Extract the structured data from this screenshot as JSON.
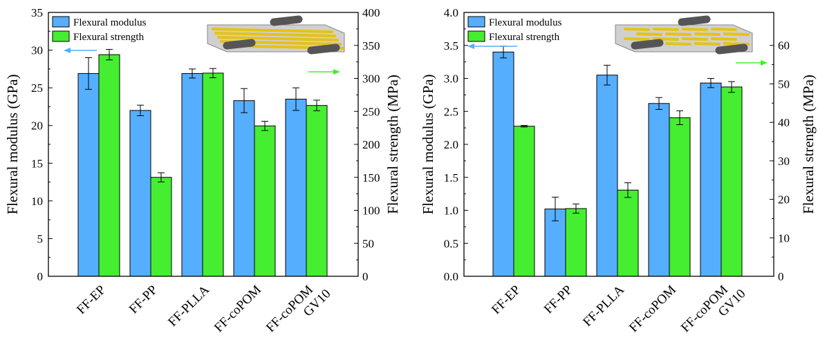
{
  "colors": {
    "modulus": "#56aefe",
    "strength": "#45ee30",
    "axis": "#000000",
    "fiber": "#e6c214",
    "fiber_edge": "#b89400",
    "roller": "#555555",
    "matrix": "#c8c8c8"
  },
  "chart_data": [
    {
      "type": "bar",
      "categories": [
        "FF-EP",
        "FF-PP",
        "FF-PLLA",
        "FF-coPOM",
        "FF-coPOM\nGV10"
      ],
      "ylabel": "Flexural modulus (GPa)",
      "y2label": "Flexural strength (MPa)",
      "ylim": [
        0,
        35
      ],
      "y2lim": [
        0,
        400
      ],
      "yticks": [
        0,
        5,
        10,
        15,
        20,
        25,
        30,
        35
      ],
      "y2ticks": [
        0,
        50,
        100,
        150,
        200,
        250,
        300,
        350,
        400
      ],
      "ytick_labels": [
        "0",
        "5",
        "10",
        "15",
        "20",
        "25",
        "30",
        "35"
      ],
      "y2tick_labels": [
        "0",
        "50",
        "100",
        "150",
        "200",
        "250",
        "300",
        "350",
        "400"
      ],
      "legend_position": "top-left",
      "series": [
        {
          "name": "Flexural modulus",
          "axis": "left",
          "values": [
            26.9,
            22.0,
            26.9,
            23.3,
            23.5
          ],
          "errors": [
            2.1,
            0.7,
            0.6,
            1.6,
            1.5
          ]
        },
        {
          "name": "Flexural strength",
          "axis": "right",
          "values": [
            336,
            150,
            308,
            228,
            259
          ],
          "errors": [
            8,
            7,
            7,
            7,
            8
          ]
        }
      ],
      "arrow_annotations": [
        "modulus-axis-left",
        "strength-axis-right"
      ],
      "inset": "fibers-parallel"
    },
    {
      "type": "bar",
      "categories": [
        "FF-EP",
        "FF-PP",
        "FF-PLLA",
        "FF-coPOM",
        "FF-coPOM\nGV10"
      ],
      "ylabel": "Flexural modulus (GPa)",
      "y2label": "Flexural strength (MPa)",
      "ylim": [
        0,
        4.0
      ],
      "y2lim": [
        0,
        68.57
      ],
      "yticks": [
        0,
        0.5,
        1.0,
        1.5,
        2.0,
        2.5,
        3.0,
        3.5,
        4.0
      ],
      "y2ticks": [
        0,
        10,
        20,
        30,
        40,
        50,
        60
      ],
      "ytick_labels": [
        "0.0",
        "0.5",
        "1.0",
        "1.5",
        "2.0",
        "2.5",
        "3.0",
        "3.5",
        "4.0"
      ],
      "y2tick_labels": [
        "0",
        "10",
        "20",
        "30",
        "40",
        "50",
        "60"
      ],
      "legend_position": "top-left",
      "series": [
        {
          "name": "Flexural modulus",
          "axis": "left",
          "values": [
            3.4,
            1.02,
            3.05,
            2.62,
            2.93
          ],
          "errors": [
            0.09,
            0.18,
            0.15,
            0.09,
            0.07
          ]
        },
        {
          "name": "Flexural strength",
          "axis": "right",
          "values": [
            39.0,
            17.6,
            22.4,
            41.2,
            49.2
          ],
          "errors": [
            0.2,
            1.2,
            1.9,
            1.8,
            1.4
          ]
        }
      ],
      "arrow_annotations": [
        "modulus-axis-left",
        "strength-axis-right"
      ],
      "inset": "fibers-staggered"
    }
  ]
}
